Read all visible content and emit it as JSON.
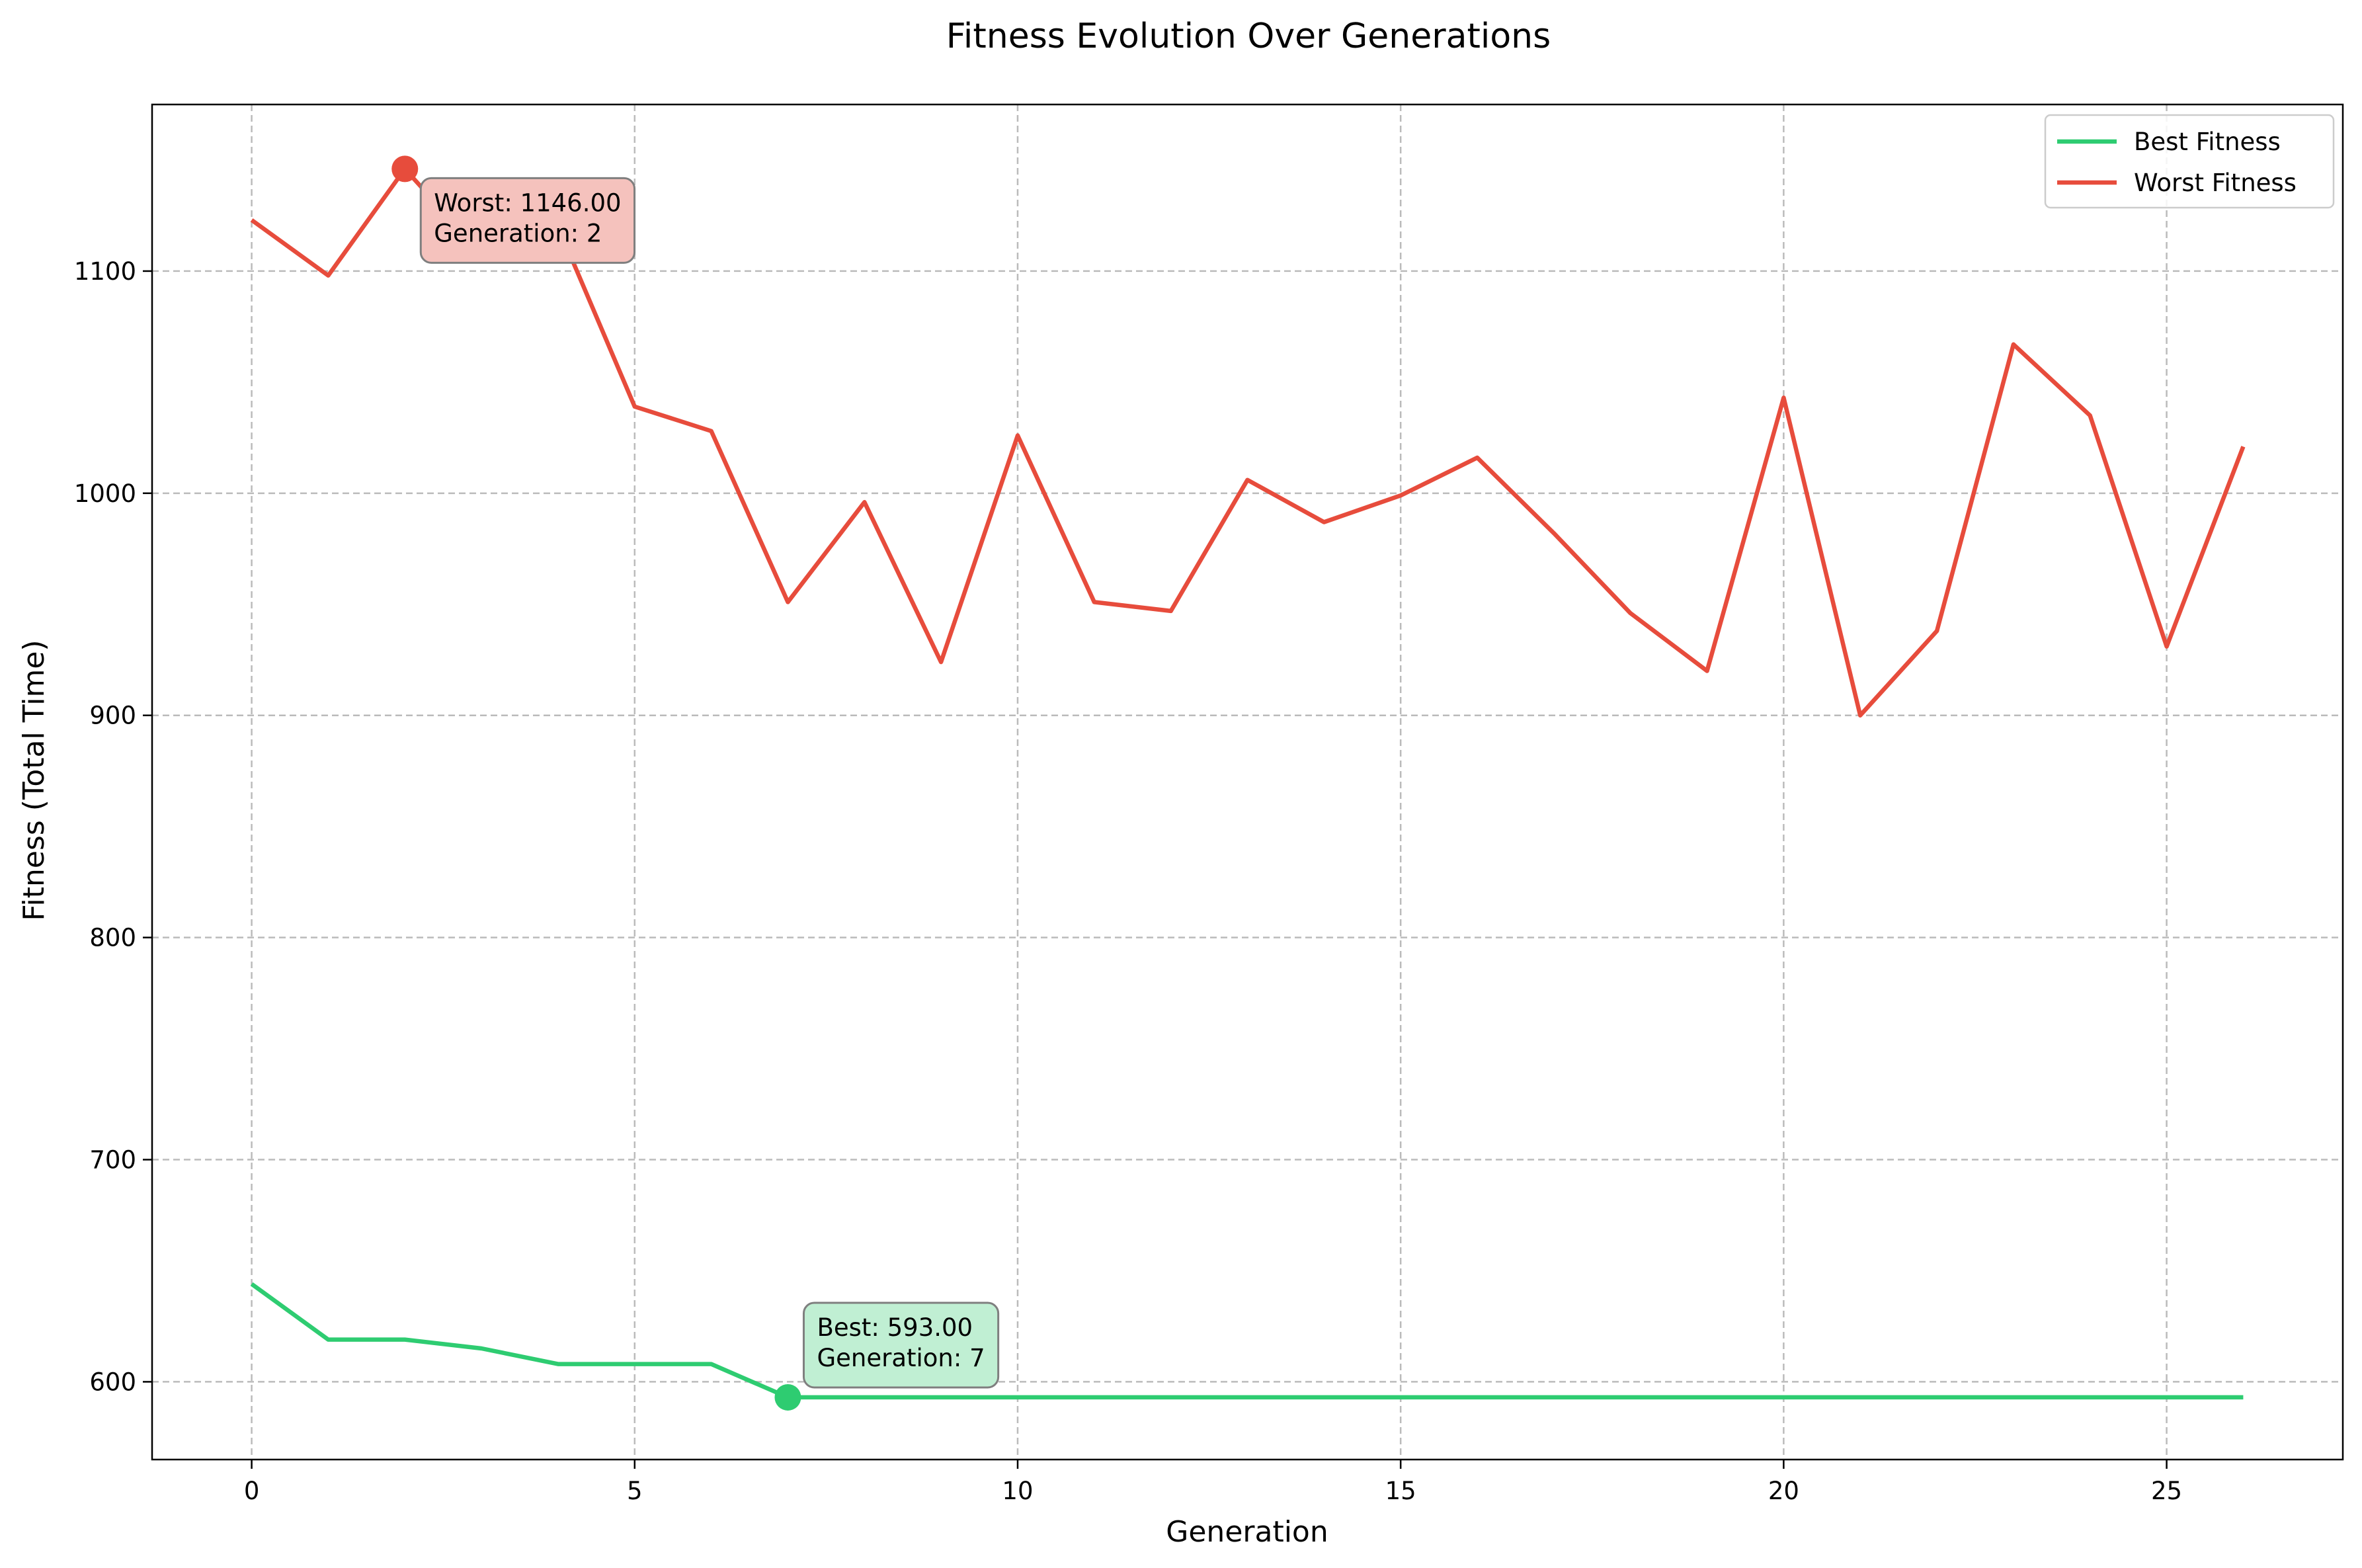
{
  "chart_data": {
    "type": "line",
    "title": "Fitness Evolution Over Generations",
    "xlabel": "Generation",
    "ylabel": "Fitness (Total Time)",
    "xlim": [
      -1.3,
      27.3
    ],
    "ylim": [
      565,
      1175
    ],
    "xticks": [
      0,
      5,
      10,
      15,
      20,
      25
    ],
    "yticks": [
      600,
      700,
      800,
      900,
      1000,
      1100
    ],
    "grid": true,
    "legend_position": "top-right",
    "x": [
      0,
      1,
      2,
      3,
      4,
      5,
      6,
      7,
      8,
      9,
      10,
      11,
      12,
      13,
      14,
      15,
      16,
      17,
      18,
      19,
      20,
      21,
      22,
      23,
      24,
      25,
      26
    ],
    "series": [
      {
        "name": "Best Fitness",
        "color": "#2ecc71",
        "values": [
          644,
          619,
          619,
          615,
          608,
          608,
          608,
          593,
          593,
          593,
          593,
          593,
          593,
          593,
          593,
          593,
          593,
          593,
          593,
          593,
          593,
          593,
          593,
          593,
          593,
          593,
          593
        ]
      },
      {
        "name": "Worst Fitness",
        "color": "#e74c3c",
        "values": [
          1123,
          1098,
          1146,
          1108,
          1120,
          1039,
          1028,
          951,
          996,
          924,
          1026,
          951,
          947,
          1006,
          987,
          999,
          1016,
          982,
          946,
          920,
          1043,
          900,
          938,
          1067,
          1035,
          931,
          1021
        ]
      }
    ],
    "annotations": [
      {
        "series": "Worst Fitness",
        "x": 2,
        "y": 1146,
        "line1": "Worst: 1146.00",
        "line2": "Generation: 2",
        "box_fill": "#f5c2bd",
        "marker_color": "#e74c3c"
      },
      {
        "series": "Best Fitness",
        "x": 7,
        "y": 593,
        "line1": "Best: 593.00",
        "line2": "Generation: 7",
        "box_fill": "#c0efd3",
        "marker_color": "#2ecc71"
      }
    ]
  }
}
